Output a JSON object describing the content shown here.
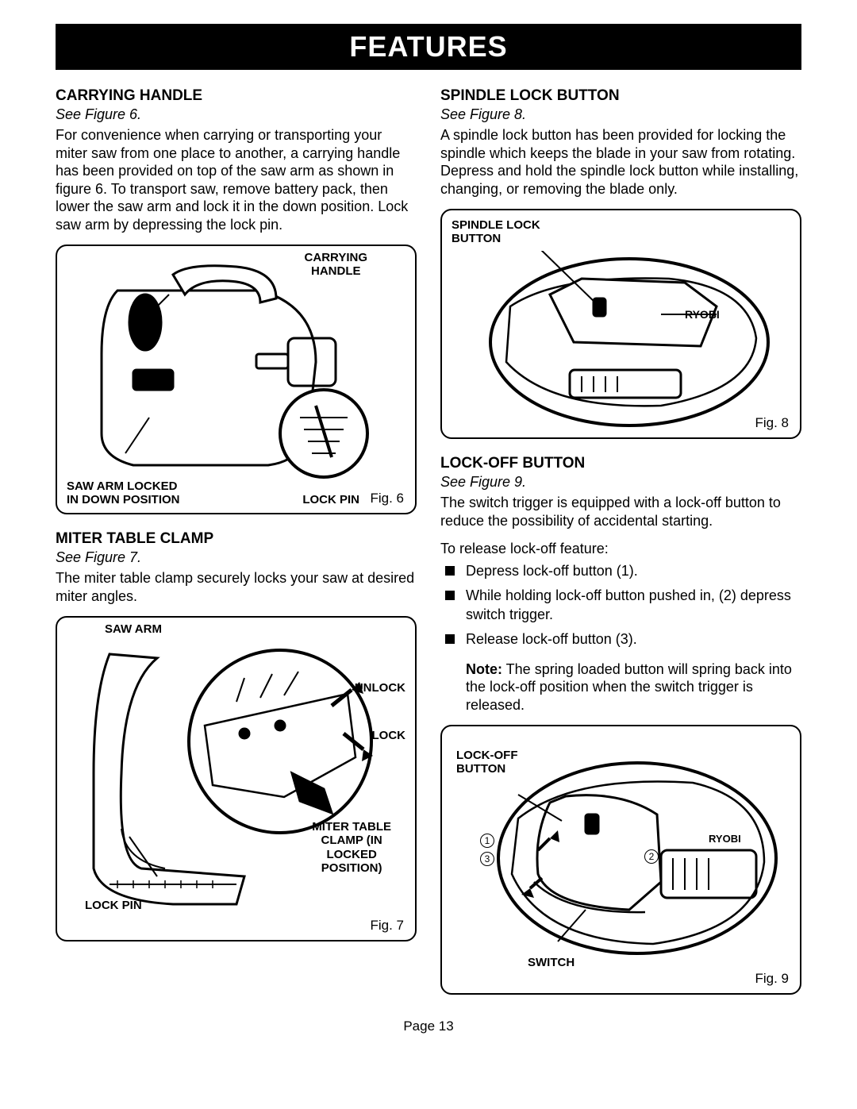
{
  "banner": "FEATURES",
  "page_number": "Page 13",
  "left": {
    "sec1": {
      "title": "CARRYING HANDLE",
      "see": "See Figure 6.",
      "body": "For convenience when carrying or transporting your miter saw from one place to another, a carrying handle has been provided on top of the saw arm as shown in figure 6. To transport saw, remove battery pack, then lower the saw arm and lock it in the down position. Lock saw arm by depressing the lock pin."
    },
    "fig6": {
      "label_top": "CARRYING HANDLE",
      "label_bottom_left_1": "SAW ARM LOCKED",
      "label_bottom_left_2": "IN DOWN POSITION",
      "label_lockpin": "LOCK PIN",
      "caption": "Fig. 6"
    },
    "sec2": {
      "title": "MITER TABLE CLAMP",
      "see": "See Figure 7.",
      "body": "The miter table clamp securely locks your saw at desired miter angles."
    },
    "fig7": {
      "label_sawarm": "SAW ARM",
      "label_unlock": "UNLOCK",
      "label_lock": "LOCK",
      "label_clamp_1": "MITER TABLE",
      "label_clamp_2": "CLAMP (IN",
      "label_clamp_3": "LOCKED",
      "label_clamp_4": "POSITION)",
      "label_lockpin": "LOCK PIN",
      "caption": "Fig. 7"
    }
  },
  "right": {
    "sec1": {
      "title": "SPINDLE LOCK BUTTON",
      "see": "See Figure 8.",
      "body": "A spindle lock button has been provided for locking the spindle which keeps the blade in your saw from rotating. Depress and hold the spindle lock button while installing, changing, or removing the blade only."
    },
    "fig8": {
      "label_top": "SPINDLE LOCK",
      "label_top2": "BUTTON",
      "caption": "Fig. 8"
    },
    "sec2": {
      "title": "LOCK-OFF BUTTON",
      "see": "See Figure 9.",
      "body": "The switch trigger is equipped with a lock-off button to reduce the possibility of accidental starting.",
      "intro": "To release lock-off feature:",
      "bullets": [
        "Depress lock-off button (1).",
        "While holding lock-off button pushed in, (2) depress switch trigger.",
        "Release lock-off button (3)."
      ],
      "note_label": "Note:",
      "note": " The spring loaded button will spring back into the lock-off position when the switch trigger is released."
    },
    "fig9": {
      "label_top": "LOCK-OFF",
      "label_top2": "BUTTON",
      "label_switch": "SWITCH",
      "n1": "1",
      "n2": "2",
      "n3": "3",
      "caption": "Fig. 9"
    }
  }
}
